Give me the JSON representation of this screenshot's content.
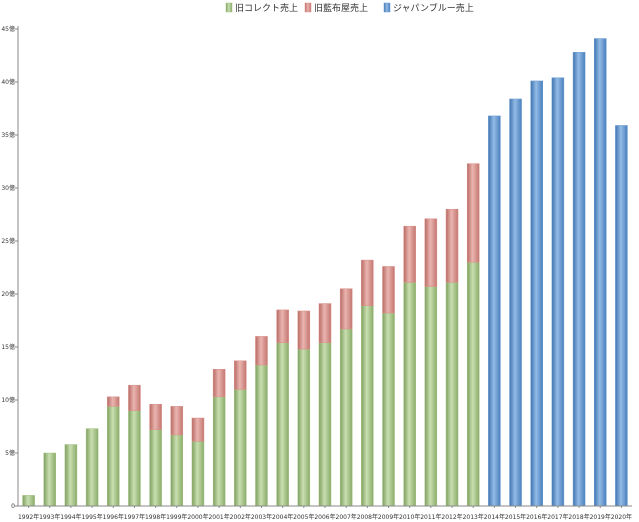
{
  "chart_data": {
    "type": "bar",
    "stacked": true,
    "title": "",
    "xlabel": "",
    "ylabel": "",
    "ylim": [
      0,
      45
    ],
    "yticks": [
      "0",
      "5億",
      "10億",
      "15億",
      "20億",
      "25億",
      "30億",
      "35億",
      "40億",
      "45億"
    ],
    "ytick_values": [
      0,
      5,
      10,
      15,
      20,
      25,
      30,
      35,
      40,
      45
    ],
    "grid": false,
    "legend_position": "top-center",
    "categories": [
      "1992年",
      "1993年",
      "1994年",
      "1995年",
      "1996年",
      "1997年",
      "1998年",
      "1999年",
      "2000年",
      "2001年",
      "2002年",
      "2003年",
      "2004年",
      "2005年",
      "2006年",
      "2007年",
      "2008年",
      "2009年",
      "2010年",
      "2011年",
      "2012年",
      "2013年",
      "2014年",
      "2015年",
      "2016年",
      "2017年",
      "2018年",
      "2019年",
      "2020年"
    ],
    "series": [
      {
        "name": "旧コレクト売上",
        "color": "#a3c284",
        "values": [
          1.0,
          5.0,
          5.8,
          7.3,
          9.4,
          9.0,
          7.2,
          6.7,
          6.1,
          10.3,
          11.0,
          13.3,
          15.4,
          14.8,
          15.4,
          16.7,
          18.9,
          18.2,
          21.1,
          20.7,
          21.1,
          23.0,
          0,
          0,
          0,
          0,
          0,
          0,
          0
        ]
      },
      {
        "name": "旧藍布屋売上",
        "color": "#d9908a",
        "values": [
          0,
          0,
          0,
          0,
          0.9,
          2.4,
          2.4,
          2.7,
          2.2,
          2.6,
          2.7,
          2.7,
          3.1,
          3.6,
          3.7,
          3.8,
          4.3,
          4.4,
          5.3,
          6.4,
          6.9,
          9.3,
          0,
          0,
          0,
          0,
          0,
          0,
          0
        ]
      },
      {
        "name": "ジャパンブルー売上",
        "color": "#6a9bd0",
        "values": [
          0,
          0,
          0,
          0,
          0,
          0,
          0,
          0,
          0,
          0,
          0,
          0,
          0,
          0,
          0,
          0,
          0,
          0,
          0,
          0,
          0,
          0,
          36.8,
          38.4,
          40.1,
          40.4,
          42.8,
          44.1,
          35.9
        ]
      }
    ]
  }
}
